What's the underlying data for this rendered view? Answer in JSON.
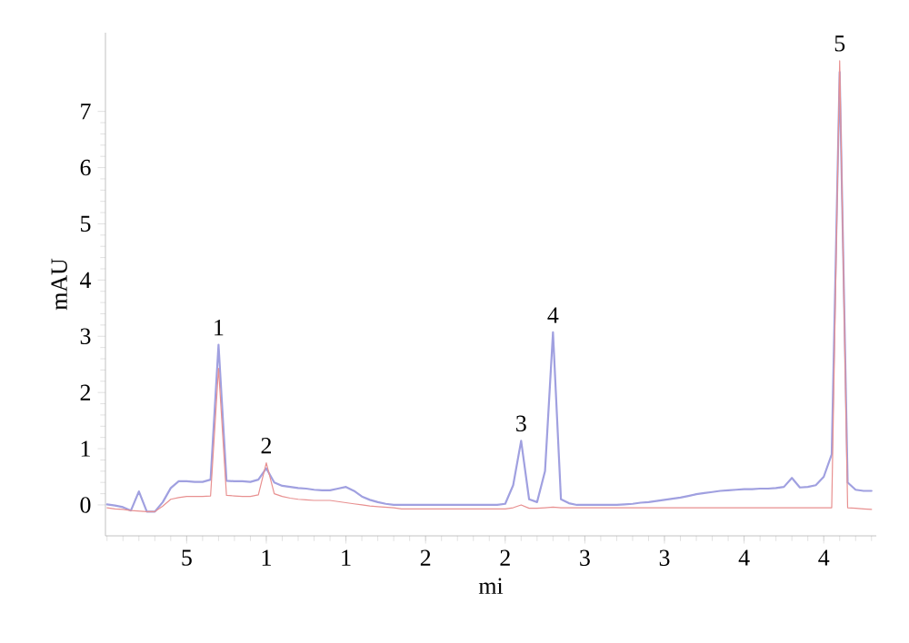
{
  "chart_data": {
    "type": "line",
    "xlabel": "mi",
    "ylabel": "mAU",
    "categories": [
      null,
      null,
      null,
      null,
      null,
      null,
      null,
      null,
      null,
      null,
      "5",
      null,
      null,
      null,
      null,
      null,
      null,
      null,
      null,
      null,
      "1",
      null,
      null,
      null,
      null,
      null,
      null,
      null,
      null,
      null,
      "1",
      null,
      null,
      null,
      null,
      null,
      null,
      null,
      null,
      null,
      "2",
      null,
      null,
      null,
      null,
      null,
      null,
      null,
      null,
      null,
      "2",
      null,
      null,
      null,
      null,
      null,
      null,
      null,
      null,
      null,
      "3",
      null,
      null,
      null,
      null,
      null,
      null,
      null,
      null,
      null,
      "3",
      null,
      null,
      null,
      null,
      null,
      null,
      null,
      null,
      null,
      "4",
      null,
      null,
      null,
      null,
      null,
      null,
      null,
      null,
      null,
      "4",
      null,
      null,
      null,
      null,
      null,
      null
    ],
    "ylim": [
      -0.55,
      8.4
    ],
    "yticks": [
      0,
      1,
      2,
      3,
      4,
      5,
      6,
      7
    ],
    "grid": false,
    "marker": "none",
    "line_style": "solid",
    "series": [
      {
        "color": "#a0a0e0",
        "values": [
          0.01,
          -0.01,
          -0.04,
          -0.1,
          0.24,
          -0.12,
          -0.12,
          0.05,
          0.3,
          0.42,
          0.42,
          0.41,
          0.41,
          0.45,
          2.85,
          0.43,
          0.42,
          0.42,
          0.41,
          0.45,
          0.65,
          0.4,
          0.34,
          0.32,
          0.3,
          0.29,
          0.27,
          0.26,
          0.26,
          0.29,
          0.32,
          0.25,
          0.15,
          0.09,
          0.05,
          0.02,
          0.0,
          0.0,
          0.0,
          0.0,
          0.0,
          0.0,
          0.0,
          0.0,
          0.0,
          0.0,
          0.0,
          0.0,
          0.0,
          0.0,
          0.02,
          0.35,
          1.14,
          0.1,
          0.05,
          0.6,
          3.07,
          0.1,
          0.03,
          0.0,
          0.0,
          0.0,
          0.0,
          0.0,
          0.0,
          0.01,
          0.02,
          0.04,
          0.05,
          0.07,
          0.09,
          0.11,
          0.13,
          0.16,
          0.19,
          0.21,
          0.23,
          0.25,
          0.26,
          0.27,
          0.28,
          0.28,
          0.29,
          0.29,
          0.3,
          0.32,
          0.48,
          0.31,
          0.32,
          0.35,
          0.5,
          0.9,
          7.7,
          0.4,
          0.27,
          0.25,
          0.25
        ]
      },
      {
        "color": "#e89090",
        "values": [
          -0.05,
          -0.07,
          -0.08,
          -0.1,
          -0.11,
          -0.12,
          -0.12,
          -0.02,
          0.1,
          0.13,
          0.15,
          0.15,
          0.15,
          0.16,
          2.43,
          0.17,
          0.16,
          0.15,
          0.15,
          0.18,
          0.75,
          0.2,
          0.15,
          0.12,
          0.1,
          0.09,
          0.08,
          0.08,
          0.08,
          0.06,
          0.04,
          0.02,
          0.0,
          -0.02,
          -0.03,
          -0.04,
          -0.05,
          -0.07,
          -0.07,
          -0.07,
          -0.07,
          -0.07,
          -0.07,
          -0.07,
          -0.07,
          -0.07,
          -0.07,
          -0.07,
          -0.07,
          -0.07,
          -0.07,
          -0.05,
          0.0,
          -0.06,
          -0.06,
          -0.05,
          -0.04,
          -0.05,
          -0.05,
          -0.05,
          -0.05,
          -0.05,
          -0.05,
          -0.05,
          -0.05,
          -0.05,
          -0.05,
          -0.05,
          -0.05,
          -0.05,
          -0.05,
          -0.05,
          -0.05,
          -0.05,
          -0.05,
          -0.05,
          -0.05,
          -0.05,
          -0.05,
          -0.05,
          -0.05,
          -0.05,
          -0.05,
          -0.05,
          -0.05,
          -0.05,
          -0.05,
          -0.05,
          -0.05,
          -0.05,
          -0.05,
          -0.05,
          7.9,
          -0.05,
          -0.06,
          -0.07,
          -0.08
        ]
      }
    ],
    "annotations": [
      {
        "text": "1",
        "y": 2.85
      },
      {
        "text": "2",
        "y": 0.75
      },
      {
        "text": "3",
        "y": 1.14
      },
      {
        "text": "4",
        "y": 3.07
      },
      {
        "text": "5",
        "y": 7.9
      }
    ]
  }
}
